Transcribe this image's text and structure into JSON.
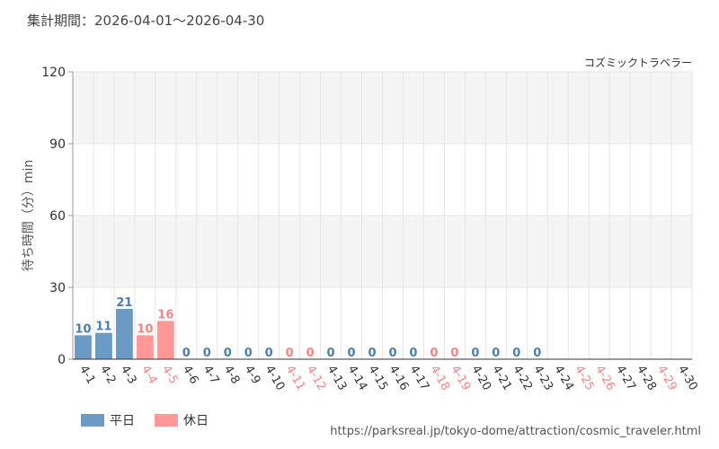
{
  "header": {
    "period": "集計期間：2026-04-01～2026-04-30",
    "attraction": "コズミックトラベラー"
  },
  "legend": [
    {
      "label": "平日",
      "color": "#6b9ac4"
    },
    {
      "label": "休日",
      "color": "#ff9896"
    }
  ],
  "source": "https://parksreal.jp/tokyo-dome/attraction/cosmic_traveler.html",
  "colors": {
    "weekday_bar": "#6b9ac4",
    "holiday_bar": "#ff9896",
    "weekday_text": "#4a7fb0",
    "holiday_text": "#ff8080",
    "weekday_tick": "#333333",
    "band": "#f4f4f4",
    "grid": "#e6e6e6"
  },
  "chart_data": {
    "type": "bar",
    "ylabel": "待ち時間（分）min",
    "ylim": [
      0,
      120
    ],
    "yticks": [
      0,
      30,
      60,
      90,
      120
    ],
    "categories": [
      "4-1",
      "4-2",
      "4-3",
      "4-4",
      "4-5",
      "4-6",
      "4-7",
      "4-8",
      "4-9",
      "4-10",
      "4-11",
      "4-12",
      "4-13",
      "4-14",
      "4-15",
      "4-16",
      "4-17",
      "4-18",
      "4-19",
      "4-20",
      "4-21",
      "4-22",
      "4-23",
      "4-24",
      "4-25",
      "4-26",
      "4-27",
      "4-28",
      "4-29",
      "4-30"
    ],
    "values": [
      10,
      11,
      21,
      10,
      16,
      0,
      0,
      0,
      0,
      0,
      0,
      0,
      0,
      0,
      0,
      0,
      0,
      0,
      0,
      0,
      0,
      0,
      0,
      null,
      null,
      null,
      null,
      null,
      null,
      null
    ],
    "holiday": [
      false,
      false,
      false,
      true,
      true,
      false,
      false,
      false,
      false,
      false,
      true,
      true,
      false,
      false,
      false,
      false,
      false,
      true,
      true,
      false,
      false,
      false,
      false,
      false,
      true,
      true,
      false,
      false,
      true,
      false
    ],
    "grid": true,
    "legend_position": "bottom-left"
  }
}
